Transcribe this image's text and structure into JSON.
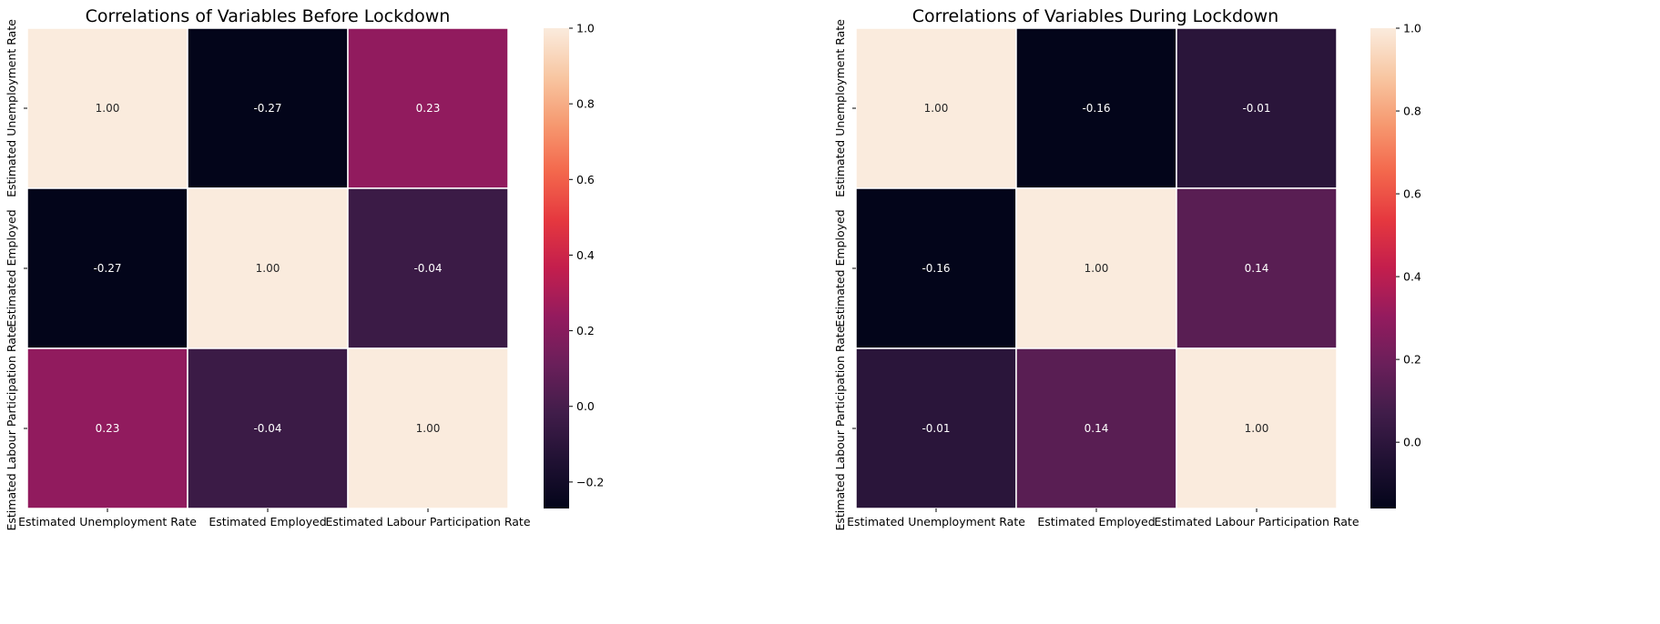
{
  "chart_data": [
    {
      "type": "heatmap",
      "title": "Correlations of Variables Before Lockdown",
      "row_labels": [
        "Estimated Unemployment Rate",
        "Estimated Employed",
        "Estimated Labour Participation Rate"
      ],
      "col_labels": [
        "Estimated Unemployment Rate",
        "Estimated Employed",
        "Estimated Labour Participation Rate"
      ],
      "values": [
        [
          1.0,
          -0.27,
          0.23
        ],
        [
          -0.27,
          1.0,
          -0.04
        ],
        [
          0.23,
          -0.04,
          1.0
        ]
      ],
      "annotations": [
        [
          "1.00",
          "-0.27",
          "0.23"
        ],
        [
          "-0.27",
          "1.00",
          "-0.04"
        ],
        [
          "0.23",
          "-0.04",
          "1.00"
        ]
      ],
      "colorbar": {
        "vmin": -0.27,
        "vmax": 1.0,
        "ticks": [
          1.0,
          0.8,
          0.6,
          0.4,
          0.2,
          0.0,
          -0.2
        ],
        "tick_labels": [
          "1.0",
          "0.8",
          "0.6",
          "0.4",
          "0.2",
          "0.0",
          "−0.2"
        ],
        "colormap": "rocket"
      }
    },
    {
      "type": "heatmap",
      "title": "Correlations of Variables During Lockdown",
      "row_labels": [
        "Estimated Unemployment Rate",
        "Estimated Employed",
        "Estimated Labour Participation Rate"
      ],
      "col_labels": [
        "Estimated Unemployment Rate",
        "Estimated Employed",
        "Estimated Labour Participation Rate"
      ],
      "values": [
        [
          1.0,
          -0.16,
          -0.01
        ],
        [
          -0.16,
          1.0,
          0.14
        ],
        [
          -0.01,
          0.14,
          1.0
        ]
      ],
      "annotations": [
        [
          "1.00",
          "-0.16",
          "-0.01"
        ],
        [
          "-0.16",
          "1.00",
          "0.14"
        ],
        [
          "-0.01",
          "0.14",
          "1.00"
        ]
      ],
      "colorbar": {
        "vmin": -0.16,
        "vmax": 1.0,
        "ticks": [
          1.0,
          0.8,
          0.6,
          0.4,
          0.2,
          0.0
        ],
        "tick_labels": [
          "1.0",
          "0.8",
          "0.6",
          "0.4",
          "0.2",
          "0.0"
        ],
        "colormap": "rocket"
      }
    }
  ]
}
